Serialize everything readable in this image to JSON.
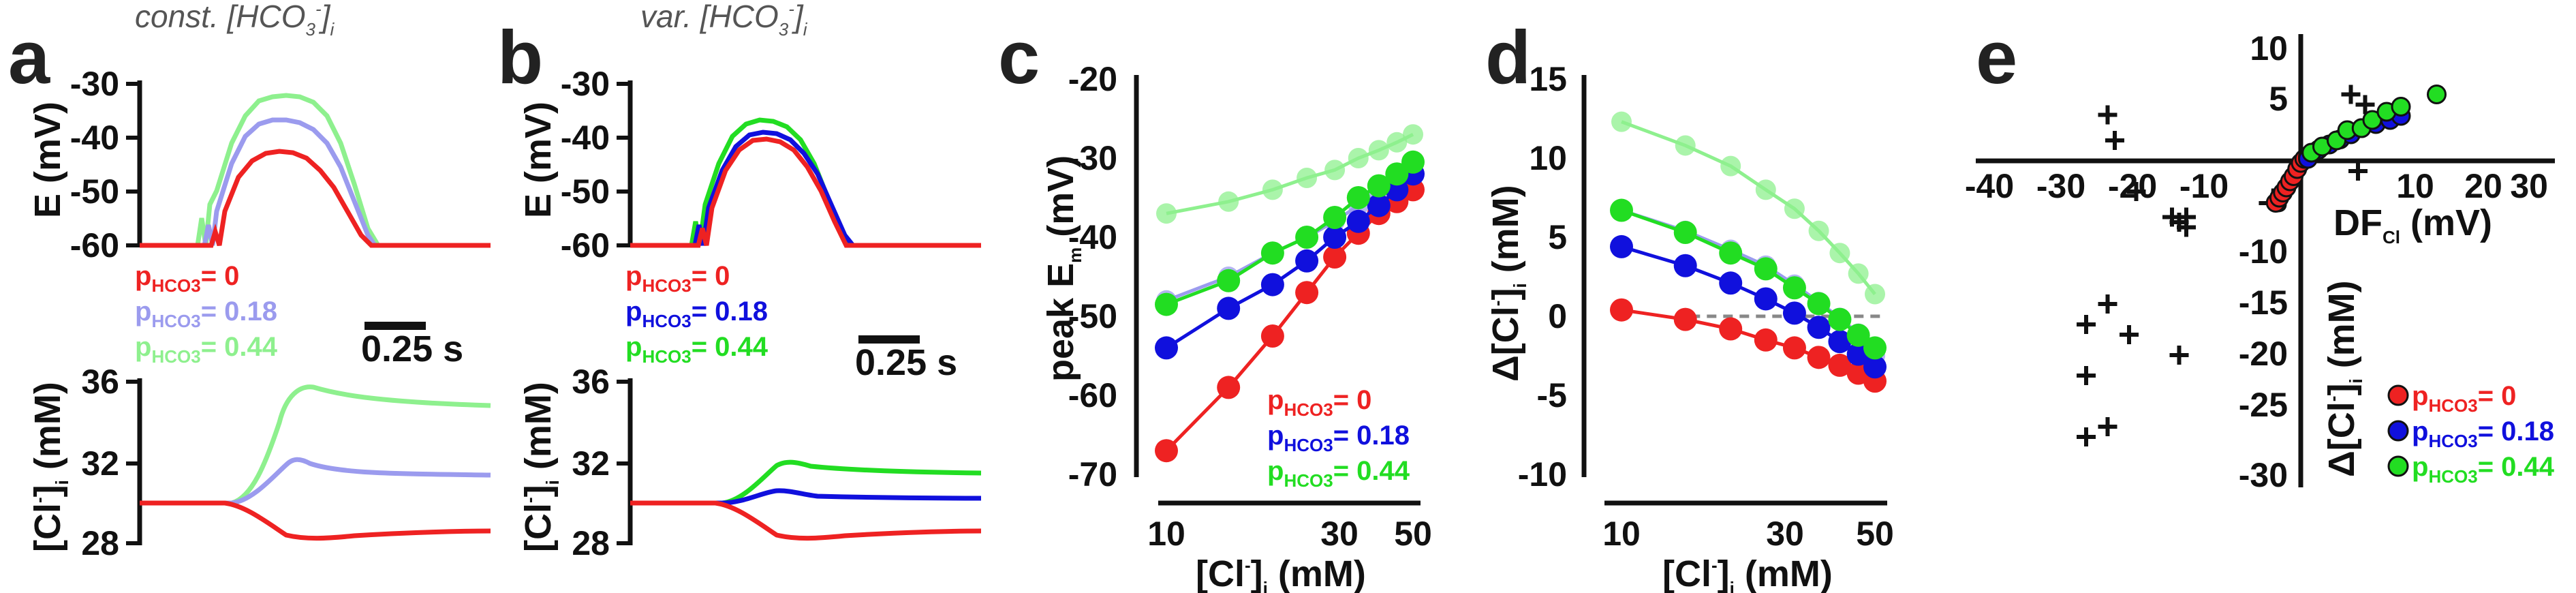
{
  "colors": {
    "red": "#ee2222",
    "blue": "#1010dd",
    "green": "#22dd22",
    "light_blue": "#9b9bee",
    "light_green": "#8ef08e",
    "axis": "#111111",
    "dash": "#888888"
  },
  "panels": {
    "a": {
      "letter": "a",
      "title_main": "const. [HCO",
      "title_sub": "3",
      "title_sup": "-",
      "title_end": "]",
      "title_idx": "i",
      "ylabel_top": "E (mV)",
      "ylabel_bottom_main": "[Cl",
      "ylabel_bottom_sup": "-",
      "ylabel_bottom_end": "]",
      "ylabel_bottom_sub": "i",
      "ylabel_bottom_unit": " (mM)",
      "top_ticks": [
        "-30",
        "-40",
        "-50",
        "-60"
      ],
      "bottom_ticks": [
        "36",
        "32",
        "28"
      ],
      "scalebar": "0.25 s",
      "legend": [
        {
          "prefix": "p",
          "sub": "HCO3",
          "value": "= 0"
        },
        {
          "prefix": "p",
          "sub": "HCO3",
          "value": "= 0.18"
        },
        {
          "prefix": "p",
          "sub": "HCO3",
          "value": "= 0.44"
        }
      ]
    },
    "b": {
      "letter": "b",
      "title_main": "var. [HCO",
      "title_sub": "3",
      "title_sup": "-",
      "title_end": "]",
      "title_idx": "i",
      "ylabel_top": "E (mV)",
      "ylabel_bottom_main": "[Cl",
      "ylabel_bottom_sup": "-",
      "ylabel_bottom_end": "]",
      "ylabel_bottom_sub": "i",
      "ylabel_bottom_unit": " (mM)",
      "top_ticks": [
        "-30",
        "-40",
        "-50",
        "-60"
      ],
      "bottom_ticks": [
        "36",
        "32",
        "28"
      ],
      "scalebar": "0.25 s",
      "legend": [
        {
          "prefix": "p",
          "sub": "HCO3",
          "value": "= 0"
        },
        {
          "prefix": "p",
          "sub": "HCO3",
          "value": "= 0.18"
        },
        {
          "prefix": "p",
          "sub": "HCO3",
          "value": "= 0.44"
        }
      ]
    },
    "c": {
      "letter": "c",
      "ylabel_main": "peak E",
      "ylabel_sub": "m",
      "ylabel_unit": " (mV)",
      "xlabel_main": "[Cl",
      "xlabel_sup": "-",
      "xlabel_end": "]",
      "xlabel_sub": "i",
      "xlabel_unit": " (mM)",
      "y_ticks": [
        "-20",
        "-30",
        "-40",
        "-50",
        "-60",
        "-70"
      ],
      "x_ticks": [
        "10",
        "30",
        "50"
      ],
      "legend": [
        {
          "prefix": "p",
          "sub": "HCO3",
          "value": "= 0"
        },
        {
          "prefix": "p",
          "sub": "HCO3",
          "value": "= 0.18"
        },
        {
          "prefix": "p",
          "sub": "HCO3",
          "value": "= 0.44"
        }
      ]
    },
    "d": {
      "letter": "d",
      "ylabel_main": "Δ[Cl",
      "ylabel_sup": "-",
      "ylabel_end": "]",
      "ylabel_sub": "i",
      "ylabel_unit": " (mM)",
      "xlabel_main": "[Cl",
      "xlabel_sup": "-",
      "xlabel_end": "]",
      "xlabel_sub": "i",
      "xlabel_unit": " (mM)",
      "y_ticks": [
        "15",
        "10",
        "5",
        "0",
        "-5",
        "-10"
      ],
      "x_ticks": [
        "10",
        "30",
        "50"
      ]
    },
    "e": {
      "letter": "e",
      "xlabel_main": "DF",
      "xlabel_sub": "Cl",
      "xlabel_unit": " (mV)",
      "ylabel_main": "Δ[Cl",
      "ylabel_sup": "-",
      "ylabel_end": "]",
      "ylabel_sub": "i",
      "ylabel_unit": " (mM)",
      "x_ticks": [
        "-40",
        "-30",
        "-20",
        "-10",
        "10",
        "20",
        "30"
      ],
      "y_ticks": [
        "10",
        "5",
        "-5",
        "-10",
        "-15",
        "-20",
        "-25",
        "-30"
      ],
      "legend": [
        {
          "prefix": "p",
          "sub": "HCO3",
          "value": "= 0"
        },
        {
          "prefix": "p",
          "sub": "HCO3",
          "value": "= 0.18"
        },
        {
          "prefix": "p",
          "sub": "HCO3",
          "value": "= 0.44"
        }
      ]
    }
  },
  "chart_data": [
    {
      "panel": "a",
      "type": "line",
      "subplot": "membrane potential",
      "x_unit": "s",
      "ylim": [
        -60,
        -30
      ],
      "series": [
        {
          "name": "pHCO3 = 0",
          "color": "#ee2222",
          "peak": -43,
          "baseline": -60
        },
        {
          "name": "pHCO3 = 0.18",
          "color": "#9b9bee",
          "peak": -37,
          "baseline": -60
        },
        {
          "name": "pHCO3 = 0.44",
          "color": "#8ef08e",
          "peak": -31,
          "baseline": -60
        }
      ]
    },
    {
      "panel": "a",
      "type": "line",
      "subplot": "intracellular chloride",
      "ylim": [
        28,
        36
      ],
      "series": [
        {
          "name": "pHCO3 = 0",
          "color": "#ee2222",
          "start": 30,
          "end": 28.7,
          "extremum": 28.4
        },
        {
          "name": "pHCO3 = 0.18",
          "color": "#9b9bee",
          "start": 30,
          "end": 31.4,
          "extremum": 32.0
        },
        {
          "name": "pHCO3 = 0.44",
          "color": "#8ef08e",
          "start": 30,
          "end": 34.8,
          "extremum": 35.7
        }
      ]
    },
    {
      "panel": "b",
      "type": "line",
      "subplot": "membrane potential",
      "ylim": [
        -60,
        -30
      ],
      "series": [
        {
          "name": "pHCO3 = 0",
          "color": "#ee2222",
          "peak": -41,
          "baseline": -60
        },
        {
          "name": "pHCO3 = 0.18",
          "color": "#1010dd",
          "peak": -39,
          "baseline": -60
        },
        {
          "name": "pHCO3 = 0.44",
          "color": "#22dd22",
          "peak": -37,
          "baseline": -60
        }
      ]
    },
    {
      "panel": "b",
      "type": "line",
      "subplot": "intracellular chloride",
      "ylim": [
        28,
        36
      ],
      "series": [
        {
          "name": "pHCO3 = 0",
          "color": "#ee2222",
          "start": 30,
          "end": 28.7,
          "extremum": 28.4
        },
        {
          "name": "pHCO3 = 0.18",
          "color": "#1010dd",
          "start": 30,
          "end": 30.2,
          "extremum": 30.6
        },
        {
          "name": "pHCO3 = 0.44",
          "color": "#22dd22",
          "start": 30,
          "end": 31.4,
          "extremum": 32.0
        }
      ]
    },
    {
      "panel": "c",
      "type": "scatter",
      "x_scale": "log",
      "xlim": [
        10,
        50
      ],
      "ylim": [
        -70,
        -20
      ],
      "series": [
        {
          "name": "pHCO3 = 0",
          "color": "#ee2222",
          "x": [
            10,
            15,
            20,
            25,
            30,
            35,
            40,
            45,
            50
          ],
          "y": [
            -67,
            -59,
            -52.5,
            -47,
            -42.5,
            -39.5,
            -37,
            -35.5,
            -34
          ]
        },
        {
          "name": "pHCO3 = 0.18",
          "color": "#1010dd",
          "x": [
            10,
            15,
            20,
            25,
            30,
            35,
            40,
            45,
            50
          ],
          "y": [
            -54,
            -49,
            -46,
            -43,
            -40,
            -38,
            -36,
            -34,
            -32
          ]
        },
        {
          "name": "pHCO3 = 0.44",
          "color": "#22dd22",
          "x": [
            10,
            15,
            20,
            25,
            30,
            35,
            40,
            45,
            50
          ],
          "y": [
            -48.5,
            -45.5,
            -42,
            -40,
            -37.5,
            -35,
            -33.5,
            -32,
            -30.5
          ]
        },
        {
          "name": "",
          "color": "#9b9bee",
          "x": [
            10,
            15,
            20,
            25,
            30,
            35,
            40,
            45,
            50
          ],
          "y": [
            -48,
            -45,
            -42,
            -40,
            -38,
            -36,
            -34.5,
            -33,
            -32
          ]
        },
        {
          "name": "",
          "color": "#8ef08e",
          "x": [
            10,
            15,
            20,
            25,
            30,
            35,
            40,
            45,
            50
          ],
          "y": [
            -37,
            -35.5,
            -34,
            -32.5,
            -31.5,
            -30,
            -29,
            -28,
            -27
          ]
        }
      ]
    },
    {
      "panel": "d",
      "type": "scatter",
      "x_scale": "log",
      "xlim": [
        10,
        50
      ],
      "ylim": [
        -10,
        15
      ],
      "reference_line": 0,
      "series": [
        {
          "name": "pHCO3 = 0",
          "color": "#ee2222",
          "x": [
            10,
            15,
            20,
            25,
            30,
            35,
            40,
            45,
            50
          ],
          "y": [
            0.4,
            -0.2,
            -0.8,
            -1.5,
            -2.0,
            -2.6,
            -3.1,
            -3.6,
            -4.1
          ]
        },
        {
          "name": "pHCO3 = 0.18",
          "color": "#1010dd",
          "x": [
            10,
            15,
            20,
            25,
            30,
            35,
            40,
            45,
            50
          ],
          "y": [
            4.4,
            3.2,
            2.1,
            1.1,
            0.2,
            -0.7,
            -1.6,
            -2.4,
            -3.2
          ]
        },
        {
          "name": "pHCO3 = 0.44",
          "color": "#22dd22",
          "x": [
            10,
            15,
            20,
            25,
            30,
            35,
            40,
            45,
            50
          ],
          "y": [
            6.7,
            5.3,
            4.0,
            3.0,
            1.8,
            0.8,
            -0.2,
            -1.2,
            -2.0
          ]
        },
        {
          "name": "",
          "color": "#9b9bee",
          "x": [
            10,
            15,
            20,
            25,
            30,
            35,
            40,
            45,
            50
          ],
          "y": [
            6.7,
            5.4,
            4.2,
            3.2,
            2.0,
            0.9,
            -0.1,
            -1.1,
            -2.5
          ]
        },
        {
          "name": "",
          "color": "#8ef08e",
          "x": [
            10,
            15,
            20,
            25,
            30,
            35,
            40,
            45,
            50
          ],
          "y": [
            12.3,
            10.8,
            9.5,
            8.0,
            6.8,
            5.4,
            4.0,
            2.7,
            1.4
          ]
        }
      ]
    },
    {
      "panel": "e",
      "type": "scatter",
      "xlim": [
        -40,
        30
      ],
      "ylim": [
        -30,
        10
      ],
      "series": [
        {
          "name": "pHCO3 = 0",
          "color": "#ee2222",
          "x": [
            -3.5,
            -3,
            -2.5,
            -2,
            -1.5,
            -1,
            -0.5,
            0,
            0.5,
            1
          ],
          "y": [
            -4.1,
            -3.6,
            -3.1,
            -2.6,
            -2.0,
            -1.5,
            -0.8,
            -0.2,
            0.2,
            0.4
          ]
        },
        {
          "name": "pHCO3 = 0.18",
          "color": "#1010dd",
          "x": [
            1,
            2.5,
            4,
            5.5,
            7,
            8.5,
            10.5,
            12.5,
            14
          ],
          "y": [
            0.2,
            1.1,
            1.6,
            2.1,
            2.6,
            3.2,
            3.6,
            4.0,
            4.4
          ]
        },
        {
          "name": "pHCO3 = 0.44",
          "color": "#22dd22",
          "x": [
            1.5,
            3,
            5,
            6.5,
            8.5,
            10,
            12,
            14,
            19
          ],
          "y": [
            0.8,
            1.4,
            2.0,
            3.0,
            3.2,
            4.0,
            4.8,
            5.3,
            6.5
          ]
        },
        {
          "name": "",
          "color": "#111111",
          "marker": "+",
          "x": [
            -27,
            -26,
            -23,
            -18,
            -17,
            -16,
            -16,
            -30,
            -27,
            -24,
            -30,
            -17,
            -30,
            -27,
            7,
            9,
            8
          ],
          "y": [
            4.5,
            2.0,
            -3.0,
            -5.5,
            -6.0,
            -5.5,
            -6.5,
            -16,
            -14,
            -17,
            -21,
            -19,
            -27,
            -26,
            6.5,
            5.5,
            -1.0
          ]
        }
      ]
    }
  ]
}
